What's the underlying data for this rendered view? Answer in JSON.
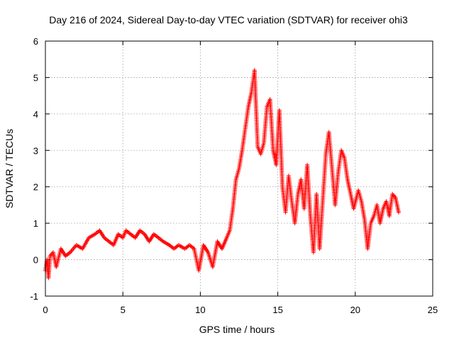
{
  "chart_data": {
    "type": "scatter",
    "title": "Day 216 of 2024, Sidereal Day-to-day VTEC variation (SDTVAR) for receiver ohi3",
    "xlabel": "GPS time / hours",
    "ylabel": "SDTVAR / TECUs",
    "xlim": [
      0,
      25
    ],
    "ylim": [
      -1,
      6
    ],
    "xticks": [
      "0",
      "5",
      "10",
      "15",
      "20",
      "25"
    ],
    "yticks": [
      "-1",
      "0",
      "1",
      "2",
      "3",
      "4",
      "5",
      "6"
    ],
    "grid": true,
    "marker": "+",
    "series": [
      {
        "name": "SDTVAR",
        "color": "#ff0000",
        "x": [
          0.0,
          0.1,
          0.2,
          0.3,
          0.5,
          0.7,
          1.0,
          1.3,
          1.6,
          2.0,
          2.4,
          2.8,
          3.2,
          3.5,
          3.8,
          4.1,
          4.4,
          4.7,
          5.0,
          5.2,
          5.5,
          5.8,
          6.1,
          6.4,
          6.7,
          7.0,
          7.3,
          7.6,
          8.0,
          8.3,
          8.6,
          9.0,
          9.3,
          9.6,
          9.9,
          10.2,
          10.5,
          10.8,
          11.1,
          11.4,
          11.7,
          11.9,
          12.1,
          12.3,
          12.5,
          12.7,
          12.9,
          13.1,
          13.3,
          13.5,
          13.7,
          13.9,
          14.1,
          14.3,
          14.5,
          14.7,
          14.9,
          15.1,
          15.3,
          15.5,
          15.7,
          15.9,
          16.1,
          16.3,
          16.5,
          16.7,
          16.9,
          17.1,
          17.3,
          17.5,
          17.7,
          17.9,
          18.1,
          18.3,
          18.5,
          18.7,
          18.9,
          19.1,
          19.3,
          19.5,
          19.7,
          19.9,
          20.2,
          20.4,
          20.6,
          20.8,
          21.0,
          21.2,
          21.4,
          21.6,
          21.8,
          22.0,
          22.2,
          22.4,
          22.6,
          22.8
        ],
        "y": [
          -0.3,
          0.0,
          -0.5,
          0.1,
          0.2,
          -0.2,
          0.3,
          0.1,
          0.2,
          0.4,
          0.3,
          0.6,
          0.7,
          0.8,
          0.6,
          0.5,
          0.4,
          0.7,
          0.6,
          0.8,
          0.7,
          0.6,
          0.8,
          0.7,
          0.5,
          0.7,
          0.6,
          0.5,
          0.4,
          0.3,
          0.4,
          0.3,
          0.4,
          0.3,
          -0.3,
          0.4,
          0.2,
          -0.2,
          0.5,
          0.3,
          0.6,
          0.8,
          1.4,
          2.2,
          2.5,
          3.0,
          3.6,
          4.2,
          4.6,
          5.2,
          3.1,
          2.9,
          3.2,
          4.2,
          4.4,
          3.0,
          2.6,
          4.1,
          2.0,
          1.3,
          2.3,
          1.6,
          1.0,
          1.8,
          2.2,
          1.4,
          2.6,
          1.2,
          0.2,
          1.8,
          0.3,
          1.6,
          2.9,
          3.5,
          2.5,
          1.5,
          2.4,
          3.0,
          2.8,
          2.2,
          1.8,
          1.4,
          1.9,
          1.6,
          1.1,
          0.3,
          1.0,
          1.2,
          1.5,
          1.0,
          1.4,
          1.6,
          1.2,
          1.8,
          1.7,
          1.3
        ]
      }
    ]
  }
}
